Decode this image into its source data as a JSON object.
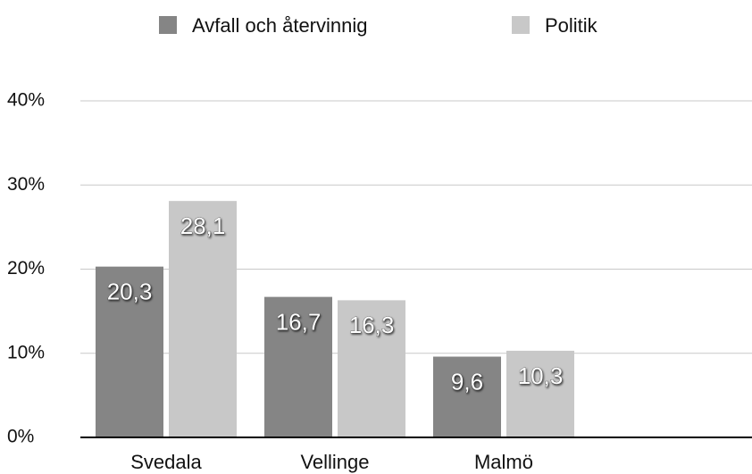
{
  "chart_data": {
    "type": "bar",
    "categories": [
      "Svedala",
      "Vellinge",
      "Malmö"
    ],
    "series": [
      {
        "name": "Avfall och återvinnig",
        "color": "#858585",
        "values": [
          20.3,
          16.7,
          9.6
        ],
        "value_labels": [
          "20,3",
          "16,7",
          "9,6"
        ]
      },
      {
        "name": "Politik",
        "color": "#c8c8c8",
        "values": [
          28.1,
          16.3,
          10.3
        ],
        "value_labels": [
          "28,1",
          "16,3",
          "10,3"
        ]
      }
    ],
    "ylim": [
      0,
      40
    ],
    "yticks": [
      {
        "value": 0,
        "label": "0%"
      },
      {
        "value": 10,
        "label": "10%"
      },
      {
        "value": 20,
        "label": "20%"
      },
      {
        "value": 30,
        "label": "30%"
      },
      {
        "value": 40,
        "label": "40%"
      }
    ],
    "grid": true,
    "legend": "top"
  }
}
